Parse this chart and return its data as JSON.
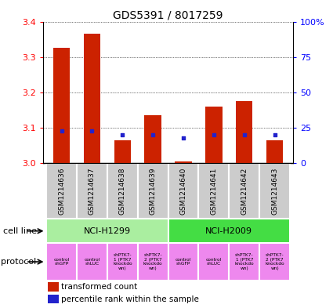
{
  "title": "GDS5391 / 8017259",
  "samples": [
    "GSM1214636",
    "GSM1214637",
    "GSM1214638",
    "GSM1214639",
    "GSM1214640",
    "GSM1214641",
    "GSM1214642",
    "GSM1214643"
  ],
  "transformed_count": [
    3.325,
    3.365,
    3.065,
    3.135,
    3.005,
    3.16,
    3.175,
    3.065
  ],
  "percentile_rank": [
    23,
    23,
    20,
    20,
    18,
    20,
    20,
    20
  ],
  "bar_bottom": 3.0,
  "ylim_left": [
    3.0,
    3.4
  ],
  "yticks_left": [
    3.0,
    3.1,
    3.2,
    3.3,
    3.4
  ],
  "ylim_right": [
    0,
    100
  ],
  "yticks_right": [
    0,
    25,
    50,
    75,
    100
  ],
  "yticklabels_right": [
    "0",
    "25",
    "50",
    "75",
    "100%"
  ],
  "bar_color": "#cc2200",
  "dot_color": "#2222cc",
  "sample_box_color": "#cccccc",
  "cell_line_groups": [
    {
      "label": "NCI-H1299",
      "start": 0,
      "end": 3,
      "color": "#aaeea0"
    },
    {
      "label": "NCI-H2009",
      "start": 4,
      "end": 7,
      "color": "#44dd44"
    }
  ],
  "protocol_labels": [
    "control\nshGFP",
    "control\nshLUC",
    "shPTK7-\n1 (PTK7\nknockdo\nwn)",
    "shPTK7-\n2 (PTK7\nknockdo\nwn)",
    "control\nshGFP",
    "control\nshLUC",
    "shPTK7-\n1 (PTK7\nknockdo\nwn)",
    "shPTK7-\n2 (PTK7\nknockdo\nwn)"
  ],
  "protocol_color": "#ee88ee",
  "legend_bar_label": "transformed count",
  "legend_dot_label": "percentile rank within the sample",
  "cell_line_label": "cell line",
  "protocol_label": "protocol",
  "background_color": "#ffffff",
  "grid_color": "#000000"
}
